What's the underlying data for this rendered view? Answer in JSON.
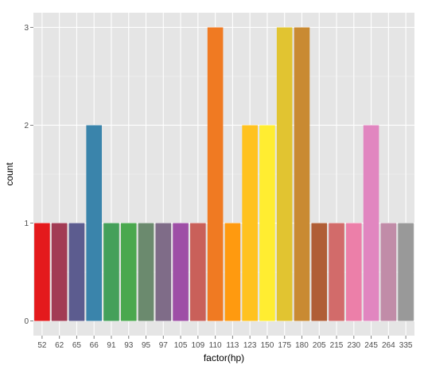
{
  "chart_data": {
    "type": "bar",
    "title": "",
    "xlabel": "factor(hp)",
    "ylabel": "count",
    "categories": [
      "52",
      "62",
      "65",
      "66",
      "91",
      "93",
      "95",
      "97",
      "105",
      "109",
      "110",
      "113",
      "123",
      "150",
      "175",
      "180",
      "205",
      "215",
      "230",
      "245",
      "264",
      "335"
    ],
    "values": [
      1,
      1,
      1,
      2,
      1,
      1,
      1,
      1,
      1,
      1,
      3,
      1,
      2,
      2,
      3,
      3,
      1,
      1,
      1,
      2,
      1,
      1
    ],
    "colors": [
      "#e41a1c",
      "#a23b54",
      "#5c5c8f",
      "#3a84ab",
      "#44a05a",
      "#4aa84e",
      "#6b8a6e",
      "#7f6c88",
      "#9e4fa6",
      "#c9605a",
      "#f07a22",
      "#ff9a0f",
      "#ffc21f",
      "#ffed31",
      "#e1c431",
      "#c98a32",
      "#b05e36",
      "#d26b6a",
      "#ec7fa9",
      "#e186c0",
      "#c18ca8",
      "#999999"
    ],
    "yticks": [
      0,
      1,
      2,
      3
    ],
    "ylim": [
      -0.15,
      3.15
    ],
    "panel_background": "#e5e5e5",
    "grid": true,
    "legend": "none"
  }
}
